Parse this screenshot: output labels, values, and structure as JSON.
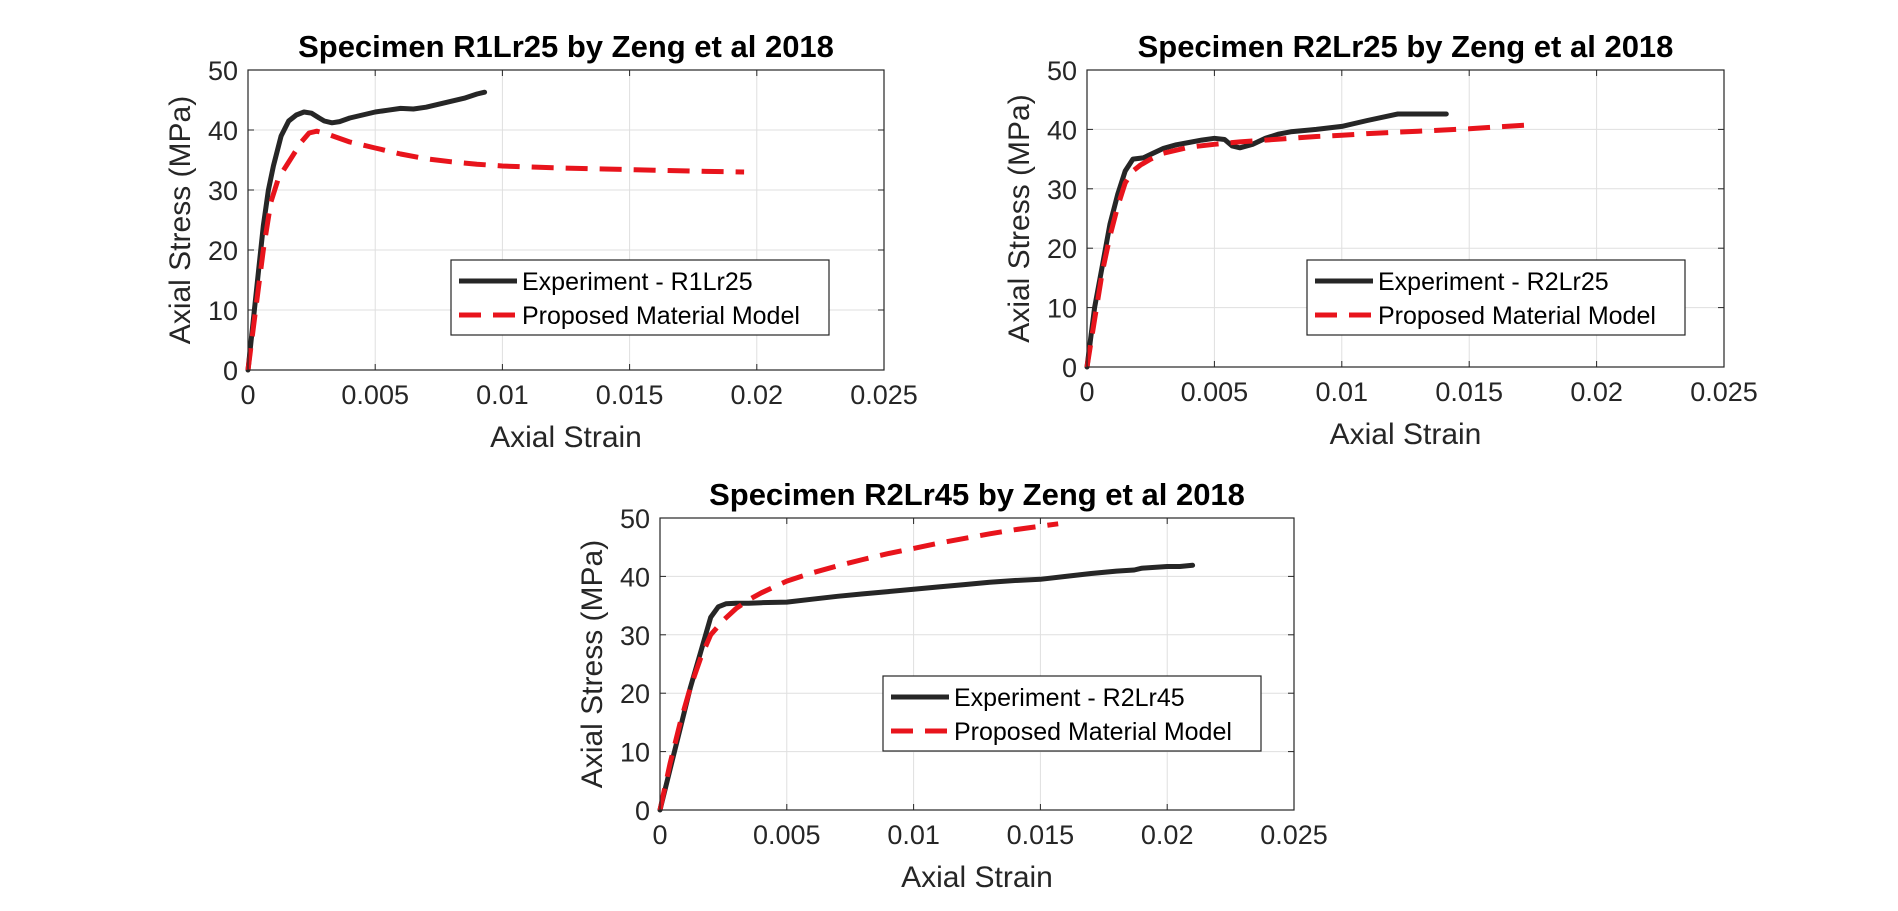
{
  "chart_data": [
    {
      "type": "line",
      "title": "Specimen R1Lr25  by Zeng et al 2018",
      "xlabel": "Axial Strain",
      "ylabel": "Axial Stress (MPa)",
      "xlim": [
        0,
        0.025
      ],
      "ylim": [
        0,
        50
      ],
      "xticks": [
        0,
        0.005,
        0.01,
        0.015,
        0.02,
        0.025
      ],
      "xtick_labels": [
        "0",
        "0.005",
        "0.01",
        "0.015",
        "0.02",
        "0.025"
      ],
      "yticks": [
        0,
        10,
        20,
        30,
        40,
        50
      ],
      "ytick_labels": [
        "0",
        "10",
        "20",
        "30",
        "40",
        "50"
      ],
      "grid": true,
      "legend_position": "lower-right",
      "series": [
        {
          "name": "Experiment - R1Lr25",
          "color": "#262626",
          "style": "solid",
          "x": [
            0,
            0.0002,
            0.0004,
            0.0006,
            0.0008,
            0.001,
            0.0013,
            0.0016,
            0.0019,
            0.0022,
            0.0025,
            0.0028,
            0.003,
            0.0033,
            0.0036,
            0.004,
            0.0045,
            0.005,
            0.0055,
            0.006,
            0.0065,
            0.007,
            0.0075,
            0.008,
            0.0085,
            0.009,
            0.0093
          ],
          "y": [
            0,
            8,
            16,
            24,
            30,
            34,
            39,
            41.5,
            42.5,
            43,
            42.8,
            42,
            41.5,
            41.2,
            41.4,
            42,
            42.5,
            43,
            43.3,
            43.6,
            43.5,
            43.8,
            44.3,
            44.8,
            45.3,
            46,
            46.3
          ]
        },
        {
          "name": "Proposed Material Model",
          "color": "#e8141c",
          "style": "dashed",
          "x": [
            0,
            0.0003,
            0.0006,
            0.0009,
            0.0012,
            0.0015,
            0.0018,
            0.0021,
            0.0024,
            0.0027,
            0.003,
            0.004,
            0.005,
            0.006,
            0.007,
            0.008,
            0.009,
            0.01,
            0.012,
            0.014,
            0.016,
            0.018,
            0.0195
          ],
          "y": [
            0,
            10,
            20,
            28,
            32,
            34,
            36,
            38,
            39.5,
            39.8,
            39.5,
            38,
            37,
            36,
            35.2,
            34.7,
            34.3,
            34,
            33.7,
            33.5,
            33.3,
            33.1,
            33
          ]
        }
      ]
    },
    {
      "type": "line",
      "title": "Specimen R2Lr25  by Zeng et al 2018",
      "xlabel": "Axial Strain",
      "ylabel": "Axial Stress (MPa)",
      "xlim": [
        0,
        0.025
      ],
      "ylim": [
        0,
        50
      ],
      "xticks": [
        0,
        0.005,
        0.01,
        0.015,
        0.02,
        0.025
      ],
      "xtick_labels": [
        "0",
        "0.005",
        "0.01",
        "0.015",
        "0.02",
        "0.025"
      ],
      "yticks": [
        0,
        10,
        20,
        30,
        40,
        50
      ],
      "ytick_labels": [
        "0",
        "10",
        "20",
        "30",
        "40",
        "50"
      ],
      "grid": true,
      "legend_position": "lower-right",
      "series": [
        {
          "name": "Experiment - R2Lr25",
          "color": "#262626",
          "style": "solid",
          "x": [
            0,
            0.0003,
            0.0006,
            0.0009,
            0.0012,
            0.0015,
            0.0018,
            0.0022,
            0.0026,
            0.003,
            0.0035,
            0.004,
            0.0045,
            0.005,
            0.0054,
            0.0057,
            0.006,
            0.0065,
            0.007,
            0.0075,
            0.008,
            0.009,
            0.01,
            0.011,
            0.0122,
            0.013,
            0.0141
          ],
          "y": [
            0,
            10,
            17,
            24,
            29,
            33,
            35,
            35.2,
            36,
            36.8,
            37.4,
            37.8,
            38.2,
            38.5,
            38.3,
            37.2,
            36.9,
            37.5,
            38.5,
            39.2,
            39.6,
            40,
            40.5,
            41.5,
            42.6,
            42.6,
            42.6
          ]
        },
        {
          "name": "Proposed Material Model",
          "color": "#e8141c",
          "style": "dashed",
          "x": [
            0,
            0.0003,
            0.0006,
            0.0009,
            0.0012,
            0.0015,
            0.0018,
            0.0021,
            0.0025,
            0.003,
            0.004,
            0.005,
            0.006,
            0.007,
            0.008,
            0.009,
            0.01,
            0.011,
            0.012,
            0.013,
            0.014,
            0.015,
            0.016,
            0.0172
          ],
          "y": [
            0,
            8,
            16,
            22,
            27,
            31,
            33,
            34,
            35,
            36,
            37,
            37.5,
            37.9,
            38.2,
            38.5,
            38.8,
            39,
            39.3,
            39.5,
            39.7,
            39.9,
            40.1,
            40.4,
            40.7
          ]
        }
      ]
    },
    {
      "type": "line",
      "title": "Specimen R2Lr45  by Zeng et al 2018",
      "xlabel": "Axial Strain",
      "ylabel": "Axial Stress (MPa)",
      "xlim": [
        0,
        0.025
      ],
      "ylim": [
        0,
        50
      ],
      "xticks": [
        0,
        0.005,
        0.01,
        0.015,
        0.02,
        0.025
      ],
      "xtick_labels": [
        "0",
        "0.005",
        "0.01",
        "0.015",
        "0.02",
        "0.025"
      ],
      "yticks": [
        0,
        10,
        20,
        30,
        40,
        50
      ],
      "ytick_labels": [
        "0",
        "10",
        "20",
        "30",
        "40",
        "50"
      ],
      "grid": true,
      "legend_position": "lower-right",
      "series": [
        {
          "name": "Experiment - R2Lr45",
          "color": "#262626",
          "style": "solid",
          "x": [
            0,
            0.0004,
            0.0008,
            0.0012,
            0.0016,
            0.002,
            0.0023,
            0.0026,
            0.003,
            0.0035,
            0.004,
            0.005,
            0.006,
            0.007,
            0.008,
            0.009,
            0.01,
            0.011,
            0.012,
            0.013,
            0.014,
            0.015,
            0.016,
            0.017,
            0.018,
            0.0187,
            0.019,
            0.02,
            0.0205,
            0.021
          ],
          "y": [
            0,
            7,
            14,
            21,
            27,
            33,
            34.8,
            35.3,
            35.4,
            35.4,
            35.5,
            35.6,
            36.1,
            36.6,
            37,
            37.4,
            37.8,
            38.2,
            38.6,
            39,
            39.3,
            39.5,
            40,
            40.5,
            40.9,
            41.1,
            41.4,
            41.7,
            41.7,
            41.9
          ]
        },
        {
          "name": "Proposed Material Model",
          "color": "#e8141c",
          "style": "dashed",
          "x": [
            0,
            0.0004,
            0.0008,
            0.0012,
            0.0016,
            0.002,
            0.0025,
            0.003,
            0.0035,
            0.004,
            0.005,
            0.006,
            0.007,
            0.008,
            0.009,
            0.01,
            0.011,
            0.012,
            0.013,
            0.014,
            0.015,
            0.0157
          ],
          "y": [
            0,
            8,
            15,
            21,
            26,
            30,
            32.5,
            34.5,
            36,
            37.2,
            39.2,
            40.6,
            41.8,
            42.9,
            43.9,
            44.8,
            45.7,
            46.5,
            47.3,
            48,
            48.6,
            49
          ]
        }
      ]
    }
  ]
}
